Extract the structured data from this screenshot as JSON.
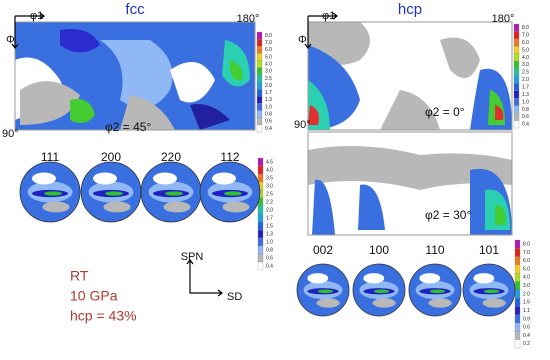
{
  "fcc": {
    "title": "fcc",
    "phi1": "φ1",
    "Phi": "Φ",
    "angle_max": "180°",
    "angle_min": "90°",
    "section_label": "φ2 = 45°",
    "odf_scale": [
      "8.0",
      "7.0",
      "6.0",
      "5.0",
      "4.0",
      "3.0",
      "2.5",
      "2.0",
      "1.7",
      "1.3",
      "1.0",
      "0.8",
      "0.6",
      "0.4"
    ],
    "pole_figures": [
      "111",
      "200",
      "220",
      "112"
    ],
    "pf_scale": [
      "4.5",
      "4.0",
      "3.5",
      "3.0",
      "2.5",
      "2.2",
      "2.0",
      "1.7",
      "1.5",
      "1.3",
      "1.0",
      "0.8",
      "0.6",
      "0.4"
    ]
  },
  "hcp": {
    "title": "hcp",
    "phi1": "φ1",
    "Phi": "Φ",
    "angle_max": "180°",
    "angle_min": "90°",
    "section_labels": [
      "φ2 = 0°",
      "φ2 = 30°"
    ],
    "odf_scale": [
      "8.0",
      "7.0",
      "6.0",
      "5.0",
      "4.0",
      "3.0",
      "2.5",
      "2.0",
      "1.7",
      "1.3",
      "1.0",
      "0.8",
      "0.6",
      "0.4"
    ],
    "pole_figures": [
      "002",
      "100",
      "110",
      "101"
    ],
    "pf_scale": [
      "8.0",
      "7.0",
      "6.0",
      "5.0",
      "4.0",
      "3.0",
      "2.0",
      "1.5",
      "1.1",
      "0.9",
      "0.6",
      "0.4",
      "0.2"
    ]
  },
  "axes": {
    "vertical": "SPN",
    "horizontal": "SD"
  },
  "conditions": [
    "RT",
    "10 GPa",
    "hcp = 43%"
  ]
}
